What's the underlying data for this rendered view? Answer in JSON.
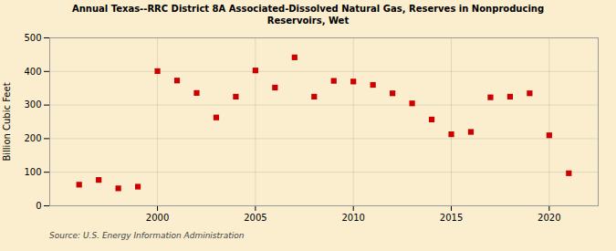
{
  "chart_data": {
    "type": "scatter",
    "title": "Annual Texas--RRC District 8A Associated-Dissolved Natural Gas, Reserves in Nonproducing\nReservoirs, Wet",
    "ylabel": "Billion Cubic Feet",
    "source": "Source: U.S. Energy Information Administration",
    "x": [
      1996,
      1997,
      1998,
      1999,
      2000,
      2001,
      2002,
      2003,
      2004,
      2005,
      2006,
      2007,
      2008,
      2009,
      2010,
      2011,
      2012,
      2013,
      2014,
      2015,
      2016,
      2017,
      2018,
      2019,
      2020,
      2021
    ],
    "values": [
      63,
      77,
      52,
      57,
      401,
      373,
      336,
      263,
      325,
      403,
      352,
      442,
      325,
      372,
      370,
      360,
      335,
      305,
      257,
      213,
      220,
      323,
      325,
      335,
      210,
      97
    ],
    "color": "#cc0000",
    "marker": "square",
    "xlim": [
      1994.5,
      2022.5
    ],
    "xticks": [
      2000,
      2005,
      2010,
      2015,
      2020
    ],
    "ylim": [
      0,
      500
    ],
    "yticks": [
      0,
      100,
      200,
      300,
      400,
      500
    ],
    "grid": true
  }
}
